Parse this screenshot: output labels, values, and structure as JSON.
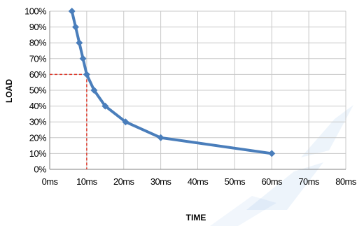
{
  "chart_data": {
    "type": "line",
    "title": "",
    "xlabel": "TIME",
    "ylabel": "LOAD",
    "xlim": [
      0,
      80
    ],
    "ylim": [
      0,
      100
    ],
    "x_ticks": [
      0,
      10,
      20,
      30,
      40,
      50,
      60,
      70,
      80
    ],
    "y_ticks": [
      0,
      10,
      20,
      30,
      40,
      50,
      60,
      70,
      80,
      90,
      100
    ],
    "x_tick_labels": [
      "0ms",
      "10ms",
      "20ms",
      "30ms",
      "40ms",
      "50ms",
      "60ms",
      "70ms",
      "80ms"
    ],
    "y_tick_labels": [
      "0%",
      "10%",
      "20%",
      "30%",
      "40%",
      "50%",
      "60%",
      "70%",
      "80%",
      "90%",
      "100%"
    ],
    "grid": true,
    "legend": "none",
    "series": [
      {
        "color": "#4a7ebb",
        "x": [
          6,
          7,
          8,
          9,
          10,
          12,
          15,
          20.5,
          30,
          60
        ],
        "y": [
          100,
          90,
          80,
          70,
          60,
          50,
          40,
          30,
          20,
          10
        ]
      }
    ],
    "reference": {
      "x": 10,
      "y": 60,
      "color": "#e0392b"
    },
    "watermark_color": "#4a90d9"
  }
}
